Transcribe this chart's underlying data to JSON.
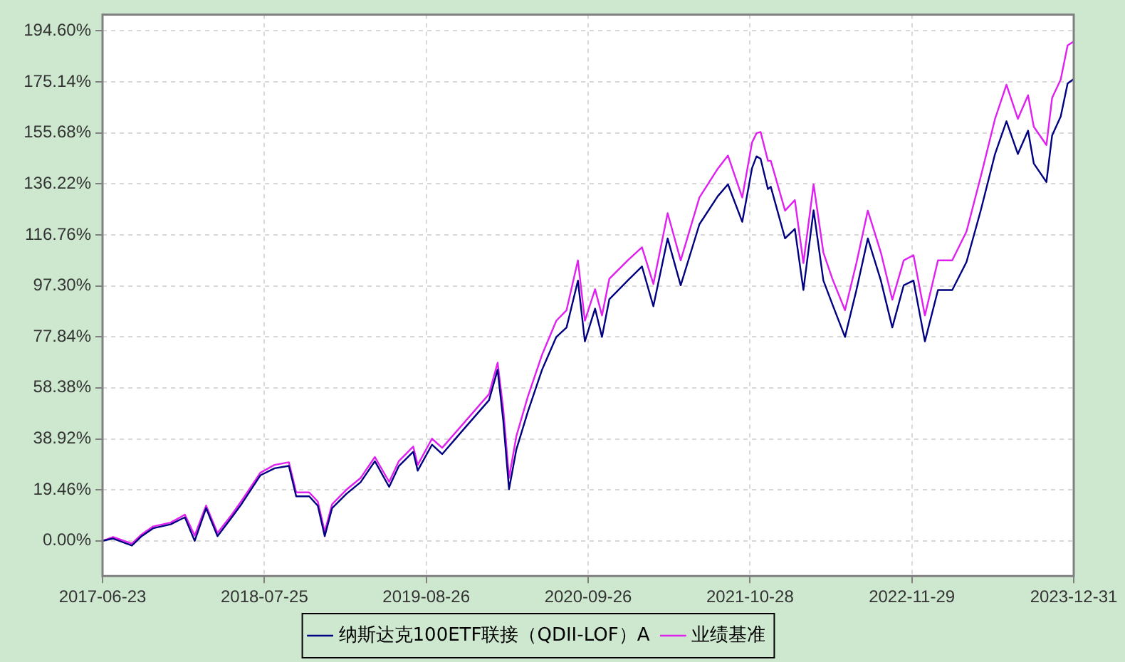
{
  "chart_data": {
    "type": "line",
    "x": [
      "2017-06-23",
      "2017-07-19",
      "2017-09-03",
      "2017-09-27",
      "2017-10-25",
      "2017-12-07",
      "2018-01-11",
      "2018-02-04",
      "2018-03-04",
      "2018-04-01",
      "2018-05-06",
      "2018-05-31",
      "2018-07-15",
      "2018-08-19",
      "2018-09-23",
      "2018-10-11",
      "2018-11-12",
      "2018-12-03",
      "2018-12-20",
      "2019-01-07",
      "2019-02-11",
      "2019-03-18",
      "2019-04-22",
      "2019-05-27",
      "2019-06-20",
      "2019-07-25",
      "2019-08-05",
      "2019-09-09",
      "2019-10-04",
      "2019-11-18",
      "2020-01-27",
      "2020-02-17",
      "2020-03-02",
      "2020-03-16",
      "2020-04-03",
      "2020-05-01",
      "2020-06-05",
      "2020-07-10",
      "2020-08-04",
      "2020-09-01",
      "2020-09-18",
      "2020-10-13",
      "2020-10-30",
      "2020-11-17",
      "2021-01-01",
      "2021-02-05",
      "2021-03-05",
      "2021-04-09",
      "2021-05-11",
      "2021-06-26",
      "2021-08-10",
      "2021-09-04",
      "2021-10-09",
      "2021-11-02",
      "2021-11-13",
      "2021-11-23",
      "2021-12-11",
      "2021-12-18",
      "2022-01-22",
      "2022-02-15",
      "2022-03-08",
      "2022-04-02",
      "2022-04-26",
      "2022-05-18",
      "2022-06-18",
      "2022-07-16",
      "2022-08-13",
      "2022-09-14",
      "2022-10-12",
      "2022-11-09",
      "2022-12-03",
      "2022-12-31",
      "2023-02-01",
      "2023-03-08",
      "2023-04-12",
      "2023-05-17",
      "2023-06-21",
      "2023-07-19",
      "2023-08-16",
      "2023-09-10",
      "2023-09-24",
      "2023-10-25",
      "2023-11-08",
      "2023-11-29",
      "2023-12-16",
      "2023-12-31"
    ],
    "series": [
      {
        "name": "纳斯达克100ETF联接（QDII-LOF）A",
        "color": "#000080",
        "values": [
          0,
          0.9,
          -1.8,
          1.8,
          4.8,
          6.3,
          9,
          0,
          12.5,
          1.8,
          9,
          14.3,
          25,
          27.7,
          28.6,
          17,
          17,
          13.4,
          1.8,
          12.5,
          17.9,
          22.4,
          30.4,
          20.6,
          28.6,
          34,
          26.8,
          36.7,
          33.1,
          41.2,
          53.7,
          65.3,
          45.6,
          19.7,
          34.9,
          49.2,
          65.3,
          77.8,
          81.4,
          99.3,
          76.1,
          88.6,
          77.8,
          92.2,
          99.3,
          104.7,
          89.5,
          115.4,
          97.5,
          120.8,
          131.5,
          136,
          121.7,
          142.2,
          146.7,
          145.8,
          134.2,
          135.1,
          115.4,
          119,
          95.7,
          126.1,
          99.3,
          90.3,
          77.8,
          95.7,
          115.4,
          99.3,
          81.4,
          97.5,
          99.3,
          76.1,
          95.7,
          95.7,
          106.4,
          126.1,
          147.6,
          160.1,
          147.6,
          156.5,
          144,
          136.9,
          154.7,
          161.9,
          174.5,
          176.2
        ]
      },
      {
        "name": "业绩基准",
        "color": "#e020f0",
        "values": [
          0,
          1.5,
          -1,
          2.5,
          5.5,
          7,
          10,
          2,
          13.5,
          3,
          10,
          15.5,
          26,
          29,
          30,
          18.5,
          18.5,
          15,
          3.5,
          14,
          19.5,
          24,
          32,
          22.5,
          30.5,
          36,
          29,
          39,
          35.5,
          43.5,
          56,
          68,
          50,
          24,
          40,
          55,
          71,
          84,
          88,
          107,
          84,
          96,
          86,
          100,
          107,
          112,
          98,
          125,
          107,
          131,
          142,
          147,
          131,
          152,
          155.5,
          156,
          145,
          145,
          126,
          130,
          106,
          136,
          110,
          100,
          88,
          106,
          126,
          110,
          92,
          107,
          109,
          86,
          107,
          107,
          118,
          139,
          161,
          174,
          161,
          170,
          158,
          151,
          169,
          176,
          189,
          190.5
        ]
      }
    ],
    "xlim": [
      "2017-06-23",
      "2023-12-31"
    ],
    "xticks": [
      "2017-06-23",
      "2018-07-25",
      "2019-08-26",
      "2020-09-26",
      "2021-10-28",
      "2022-11-29",
      "2023-12-31"
    ],
    "ylim": [
      -13.4,
      200.8
    ],
    "yticks": [
      {
        "value": 0,
        "label": "0.00%"
      },
      {
        "value": 19.46,
        "label": "19.46%"
      },
      {
        "value": 38.92,
        "label": "38.92%"
      },
      {
        "value": 58.38,
        "label": "58.38%"
      },
      {
        "value": 77.84,
        "label": "77.84%"
      },
      {
        "value": 97.3,
        "label": "97.30%"
      },
      {
        "value": 116.76,
        "label": "116.76%"
      },
      {
        "value": 136.22,
        "label": "136.22%"
      },
      {
        "value": 155.68,
        "label": "155.68%"
      },
      {
        "value": 175.14,
        "label": "175.14%"
      },
      {
        "value": 194.6,
        "label": "194.60%"
      }
    ],
    "grid": true,
    "legend": "bottom",
    "marker": "none",
    "line_style": "solid"
  }
}
